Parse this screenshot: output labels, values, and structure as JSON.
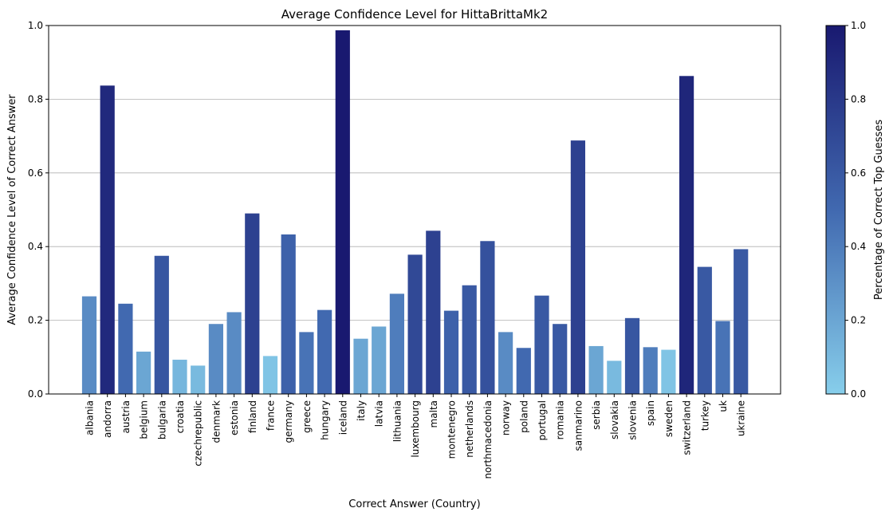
{
  "chart_data": {
    "type": "bar",
    "title": "Average Confidence Level for HittaBrittaMk2",
    "xlabel": "Correct Answer (Country)",
    "ylabel": "Average Confidence Level of Correct Answer",
    "ylim": [
      0,
      1
    ],
    "yticks": [
      "0.0",
      "0.2",
      "0.4",
      "0.6",
      "0.8",
      "1.0"
    ],
    "grid": "y",
    "categories": [
      "albania",
      "andorra",
      "austria",
      "belgium",
      "bulgaria",
      "croatia",
      "czechrepublic",
      "denmark",
      "estonia",
      "finland",
      "france",
      "germany",
      "greece",
      "hungary",
      "iceland",
      "italy",
      "latvia",
      "lithuania",
      "luxembourg",
      "malta",
      "montenegro",
      "netherlands",
      "northmacedonia",
      "norway",
      "poland",
      "portugal",
      "romania",
      "sanmarino",
      "serbia",
      "slovakia",
      "slovenia",
      "spain",
      "sweden",
      "switzerland",
      "turkey",
      "uk",
      "ukraine"
    ],
    "values": [
      0.265,
      0.837,
      0.245,
      0.115,
      0.375,
      0.093,
      0.077,
      0.19,
      0.222,
      0.49,
      0.103,
      0.433,
      0.168,
      0.228,
      0.987,
      0.15,
      0.183,
      0.272,
      0.378,
      0.443,
      0.226,
      0.295,
      0.415,
      0.168,
      0.125,
      0.267,
      0.19,
      0.688,
      0.13,
      0.09,
      0.206,
      0.127,
      0.12,
      0.863,
      0.345,
      0.198,
      0.393
    ],
    "color_values": [
      0.33,
      0.9,
      0.5,
      0.2,
      0.62,
      0.12,
      0.1,
      0.33,
      0.33,
      0.75,
      0.05,
      0.55,
      0.45,
      0.5,
      1.0,
      0.2,
      0.2,
      0.4,
      0.7,
      0.75,
      0.55,
      0.6,
      0.65,
      0.33,
      0.5,
      0.6,
      0.6,
      0.75,
      0.2,
      0.1,
      0.62,
      0.4,
      0.05,
      0.92,
      0.6,
      0.45,
      0.6
    ],
    "colorbar": {
      "label": "Percentage of Correct Top Guesses",
      "range": [
        0,
        1
      ],
      "ticks": [
        "0.0",
        "0.2",
        "0.4",
        "0.6",
        "0.8",
        "1.0"
      ],
      "color_low": "#87ceeb",
      "color_mid": "#4169b0",
      "color_high": "#191970"
    }
  }
}
